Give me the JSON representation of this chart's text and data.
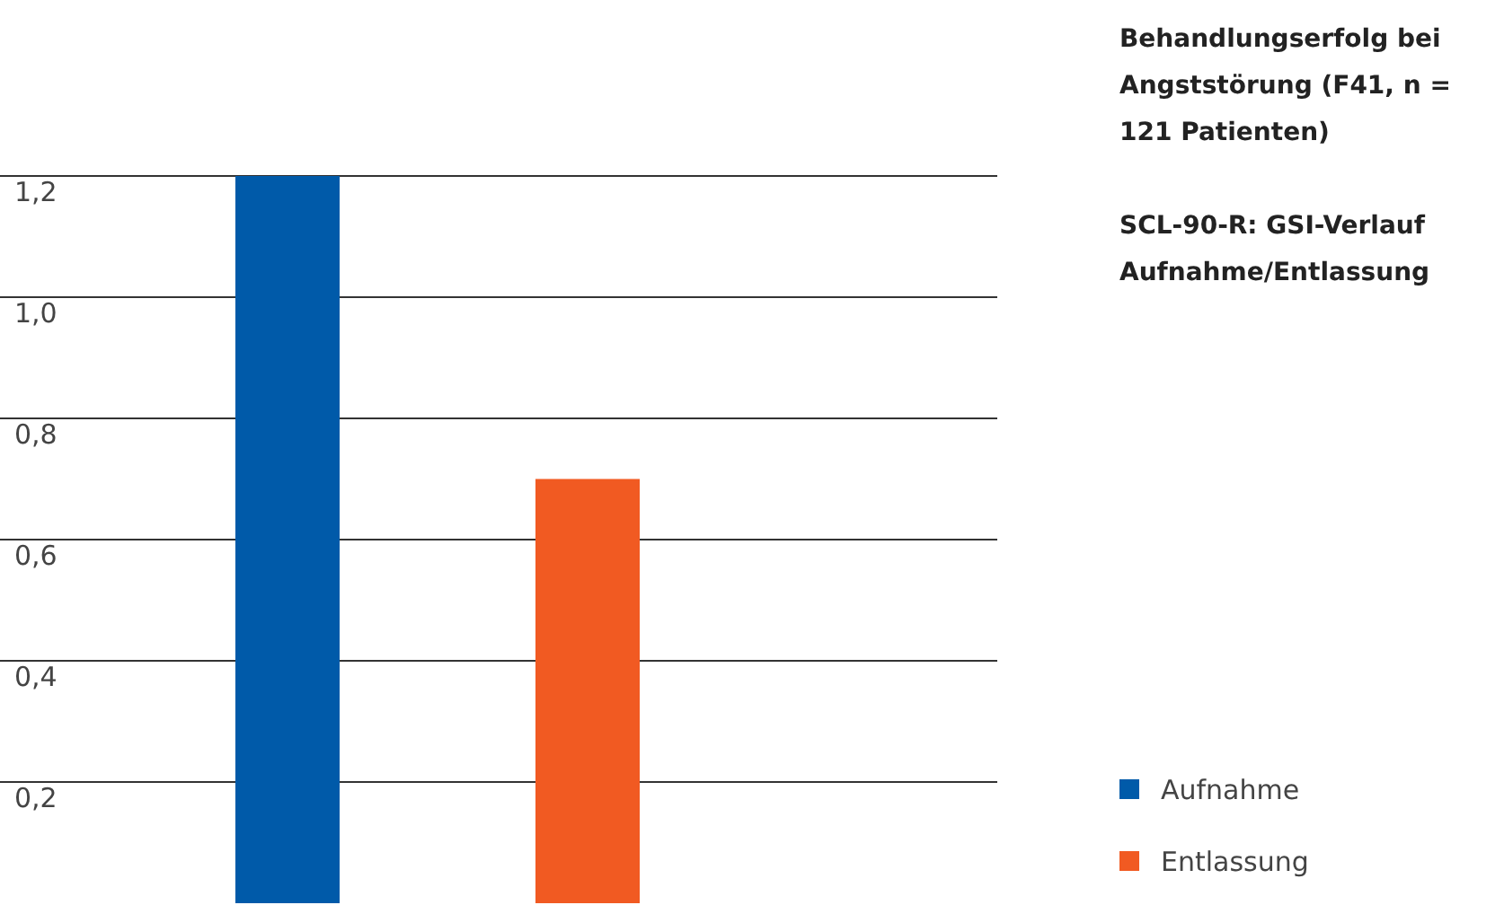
{
  "chart_data": {
    "type": "bar",
    "title": "Behandlungserfolg bei Angststörung (F41, n = 121 Patienten)",
    "subtitle": "SCL-90-R: GSI-Verlauf Aufnahme/Entlassung",
    "categories": [
      null,
      null
    ],
    "series": [
      {
        "name": "Aufnahme",
        "color": "#005aa9",
        "values": [
          1.2,
          null
        ]
      },
      {
        "name": "Entlassung",
        "color": "#f15a22",
        "values": [
          null,
          0.7
        ]
      }
    ],
    "ylim": [
      0,
      1.2
    ],
    "yticks": [
      {
        "value": 0.2,
        "label": "0,2"
      },
      {
        "value": 0.4,
        "label": "0,4"
      },
      {
        "value": 0.6,
        "label": "0,6"
      },
      {
        "value": 0.8,
        "label": "0,8"
      },
      {
        "value": 1.0,
        "label": "1,0"
      },
      {
        "value": 1.2,
        "label": "1,2"
      }
    ],
    "grid": "y",
    "legend": "bottom right"
  }
}
